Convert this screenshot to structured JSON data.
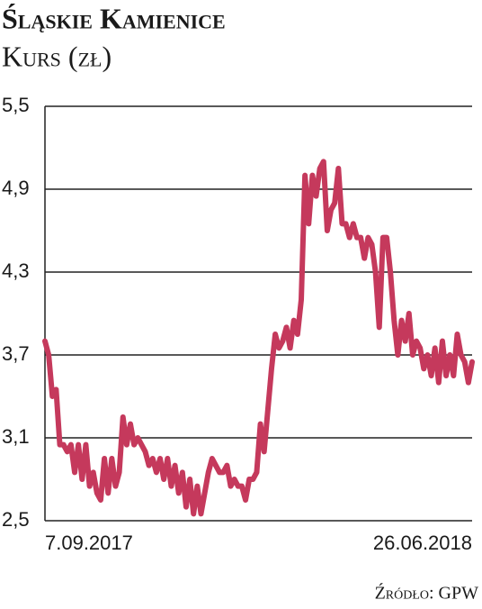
{
  "chart_data": {
    "type": "line",
    "title": "Śląskie Kamienice",
    "subtitle": "Kurs (zł)",
    "source": "Źródło: GPW",
    "categories": [
      "7.09.2017",
      null,
      null,
      null,
      null,
      null,
      null,
      null,
      null,
      null,
      null,
      null,
      null,
      null,
      null,
      null,
      null,
      null,
      null,
      null,
      null,
      null,
      null,
      null,
      null,
      null,
      null,
      null,
      null,
      null,
      null,
      null,
      null,
      null,
      null,
      null,
      null,
      null,
      null,
      null,
      null,
      null,
      null,
      null,
      null,
      null,
      null,
      null,
      null,
      null,
      null,
      null,
      null,
      null,
      null,
      null,
      null,
      null,
      null,
      null,
      null,
      null,
      null,
      null,
      null,
      null,
      null,
      null,
      null,
      null,
      null,
      null,
      null,
      null,
      null,
      null,
      null,
      null,
      null,
      null,
      null,
      null,
      null,
      null,
      null,
      null,
      null,
      null,
      null,
      null,
      null,
      null,
      null,
      null,
      null,
      null,
      null,
      null,
      null,
      null,
      null,
      null,
      null,
      null,
      null,
      null,
      null,
      null,
      null,
      null,
      null,
      null,
      null,
      null,
      null,
      "26.06.2018"
    ],
    "values": [
      3.8,
      3.7,
      3.4,
      3.45,
      3.05,
      3.05,
      3.0,
      3.05,
      2.85,
      3.05,
      2.8,
      3.05,
      2.75,
      2.85,
      2.7,
      2.65,
      2.95,
      2.7,
      2.95,
      2.75,
      2.85,
      3.25,
      3.05,
      3.2,
      3.05,
      3.1,
      3.05,
      3.0,
      2.9,
      2.95,
      2.85,
      2.95,
      2.8,
      2.95,
      2.75,
      2.9,
      2.7,
      2.85,
      2.6,
      2.8,
      2.55,
      2.75,
      2.55,
      2.7,
      2.85,
      2.95,
      2.9,
      2.85,
      2.85,
      2.9,
      2.75,
      2.8,
      2.75,
      2.75,
      2.65,
      2.8,
      2.8,
      2.85,
      3.2,
      3.0,
      3.3,
      3.6,
      3.85,
      3.75,
      3.8,
      3.9,
      3.75,
      3.95,
      3.85,
      4.1,
      5.0,
      4.65,
      5.0,
      4.85,
      5.05,
      5.1,
      4.6,
      4.75,
      4.8,
      5.05,
      4.65,
      4.65,
      4.55,
      4.65,
      4.55,
      4.55,
      4.4,
      4.55,
      4.5,
      4.3,
      3.9,
      4.55,
      4.55,
      4.3,
      3.95,
      3.7,
      3.95,
      3.8,
      4.0,
      3.7,
      3.8,
      3.75,
      3.6,
      3.7,
      3.55,
      3.75,
      3.5,
      3.8,
      3.55,
      3.7,
      3.55,
      3.85,
      3.7,
      3.65,
      3.5,
      3.65
    ],
    "color": "#c5395c",
    "ylim": [
      2.5,
      5.5
    ],
    "yticks": [
      {
        "value": 2.5,
        "label": "2,5"
      },
      {
        "value": 3.1,
        "label": "3,1"
      },
      {
        "value": 3.7,
        "label": "3,7"
      },
      {
        "value": 4.3,
        "label": "4,3"
      },
      {
        "value": 4.9,
        "label": "4,9"
      },
      {
        "value": 5.5,
        "label": "5,5"
      }
    ],
    "grid": true
  }
}
